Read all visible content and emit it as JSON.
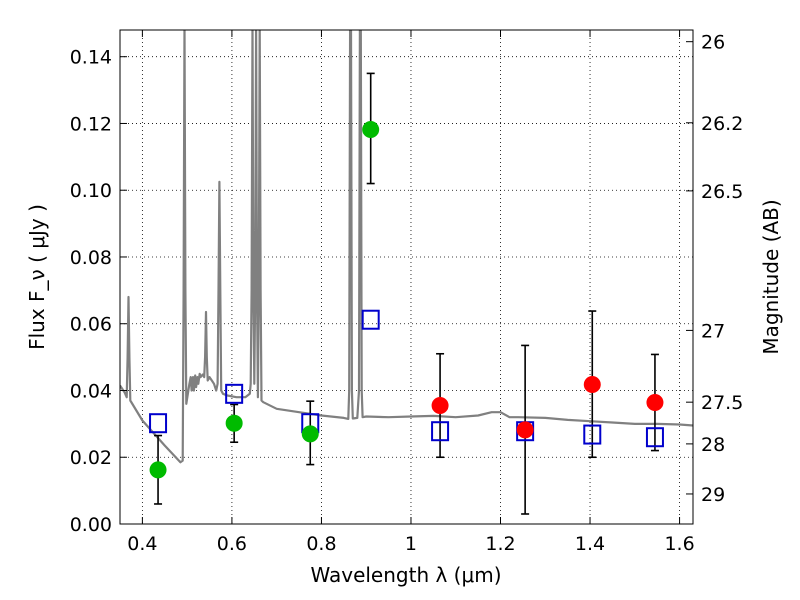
{
  "chart_data": {
    "type": "scatter",
    "xlabel": "Wavelength  λ (μm)",
    "ylabel": "Flux  F_ν  ( μJy )",
    "ylabel_right": "Magnitude (AB)",
    "xlim": [
      0.35,
      1.63
    ],
    "ylim": [
      0.0,
      0.148
    ],
    "grid": true,
    "x_ticks": [
      0.4,
      0.6,
      0.8,
      1.0,
      1.2,
      1.4,
      1.6
    ],
    "x_tick_labels": [
      "0.4",
      "0.6",
      "0.8",
      "1",
      "1.2",
      "1.4",
      "1.6"
    ],
    "y_ticks": [
      0.0,
      0.02,
      0.04,
      0.06,
      0.08,
      0.1,
      0.12,
      0.14
    ],
    "y_tick_labels": [
      "0.00",
      "0.02",
      "0.04",
      "0.06",
      "0.08",
      "0.10",
      "0.12",
      "0.14"
    ],
    "right_ticks": [
      {
        "label": "26",
        "flux": 0.1445
      },
      {
        "label": "26.2",
        "flux": 0.1202
      },
      {
        "label": "26.5",
        "flux": 0.0998
      },
      {
        "label": "27",
        "flux": 0.058
      },
      {
        "label": "27.5",
        "flux": 0.0365
      },
      {
        "label": "28",
        "flux": 0.024
      },
      {
        "label": "29",
        "flux": 0.009
      }
    ],
    "series": [
      {
        "marker": "circle",
        "color": "#00bb00",
        "x": [
          0.435,
          0.605,
          0.775,
          0.91
        ],
        "y": [
          0.0162,
          0.0302,
          0.027,
          0.1182
        ],
        "err_low": [
          0.006,
          0.0245,
          0.0178,
          0.102
        ],
        "err_high": [
          0.0265,
          0.0358,
          0.0368,
          0.135
        ]
      },
      {
        "marker": "circle",
        "color": "#ff0000",
        "x": [
          1.065,
          1.255,
          1.405,
          1.545
        ],
        "y": [
          0.0355,
          0.0282,
          0.0418,
          0.0364
        ],
        "err_low": [
          0.02,
          0.003,
          0.02,
          0.022
        ],
        "err_high": [
          0.051,
          0.0535,
          0.0638,
          0.0508
        ]
      },
      {
        "marker": "open-square",
        "color": "#0000cc",
        "x": [
          0.435,
          0.605,
          0.775,
          0.91,
          1.065,
          1.255,
          1.405,
          1.545
        ],
        "y": [
          0.0302,
          0.039,
          0.0302,
          0.0612,
          0.0278,
          0.0278,
          0.0268,
          0.026
        ]
      },
      {
        "marker": "line",
        "color": "#808080",
        "x": [
          0.35,
          0.36,
          0.365,
          0.367,
          0.369,
          0.371,
          0.373,
          0.4,
          0.45,
          0.485,
          0.49,
          0.492,
          0.494,
          0.496,
          0.498,
          0.505,
          0.508,
          0.51,
          0.513,
          0.515,
          0.518,
          0.52,
          0.523,
          0.525,
          0.528,
          0.53,
          0.535,
          0.538,
          0.54,
          0.542,
          0.544,
          0.546,
          0.55,
          0.555,
          0.56,
          0.565,
          0.568,
          0.57,
          0.572,
          0.574,
          0.576,
          0.58,
          0.59,
          0.61,
          0.63,
          0.64,
          0.642,
          0.644,
          0.646,
          0.648,
          0.65,
          0.652,
          0.654,
          0.656,
          0.658,
          0.66,
          0.662,
          0.664,
          0.666,
          0.67,
          0.7,
          0.75,
          0.8,
          0.85,
          0.86,
          0.862,
          0.864,
          0.866,
          0.868,
          0.87,
          0.88,
          0.884,
          0.886,
          0.888,
          0.89,
          0.892,
          0.9,
          0.95,
          1.0,
          1.05,
          1.1,
          1.15,
          1.18,
          1.2,
          1.22,
          1.24,
          1.3,
          1.35,
          1.4,
          1.45,
          1.5,
          1.55,
          1.6,
          1.63
        ],
        "y": [
          0.0415,
          0.0395,
          0.038,
          0.05,
          0.068,
          0.05,
          0.037,
          0.031,
          0.0235,
          0.0185,
          0.019,
          0.07,
          0.15,
          0.07,
          0.036,
          0.042,
          0.044,
          0.04,
          0.044,
          0.04,
          0.0445,
          0.041,
          0.044,
          0.042,
          0.045,
          0.044,
          0.0448,
          0.044,
          0.05,
          0.0635,
          0.05,
          0.043,
          0.044,
          0.043,
          0.042,
          0.04,
          0.042,
          0.07,
          0.1025,
          0.07,
          0.04,
          0.039,
          0.0385,
          0.038,
          0.038,
          0.039,
          0.042,
          0.07,
          0.15,
          0.07,
          0.042,
          0.07,
          0.15,
          0.07,
          0.038,
          0.07,
          0.15,
          0.07,
          0.037,
          0.0365,
          0.0345,
          0.0335,
          0.0325,
          0.0318,
          0.0315,
          0.04,
          0.15,
          0.15,
          0.04,
          0.0316,
          0.0318,
          0.04,
          0.15,
          0.15,
          0.04,
          0.032,
          0.0322,
          0.032,
          0.0322,
          0.0324,
          0.032,
          0.0325,
          0.0335,
          0.0335,
          0.032,
          0.032,
          0.0318,
          0.0312,
          0.0308,
          0.0304,
          0.03,
          0.03,
          0.0298,
          0.0295
        ]
      }
    ]
  }
}
